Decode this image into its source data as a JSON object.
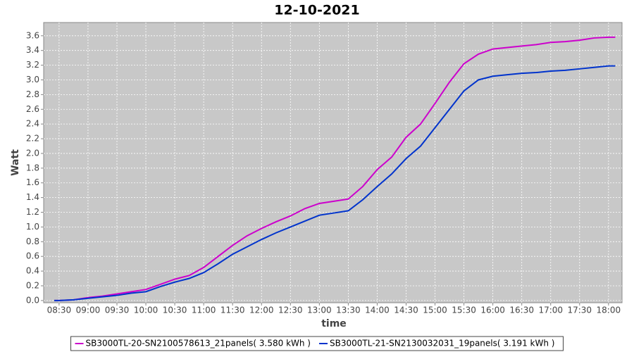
{
  "chart_data": {
    "type": "line",
    "title": "12-10-2021",
    "x_label": "time",
    "y_label": "Watt",
    "x": [
      "08:25",
      "08:30",
      "08:45",
      "09:00",
      "09:15",
      "09:30",
      "09:45",
      "10:00",
      "10:15",
      "10:30",
      "10:45",
      "11:00",
      "11:15",
      "11:30",
      "11:45",
      "12:00",
      "12:15",
      "12:30",
      "12:45",
      "13:00",
      "13:15",
      "13:30",
      "13:45",
      "14:00",
      "14:15",
      "14:30",
      "14:45",
      "15:00",
      "15:15",
      "15:30",
      "15:45",
      "16:00",
      "16:15",
      "16:30",
      "16:45",
      "17:00",
      "17:15",
      "17:30",
      "17:45",
      "18:00",
      "18:07"
    ],
    "series": [
      {
        "name": "SB3000TL-20-SN2100578613_21panels( 3.580 kWh )",
        "color": "#cc00cc",
        "values": [
          0.0,
          0.0,
          0.01,
          0.04,
          0.06,
          0.09,
          0.12,
          0.15,
          0.22,
          0.29,
          0.34,
          0.45,
          0.6,
          0.75,
          0.88,
          0.98,
          1.07,
          1.15,
          1.25,
          1.32,
          1.35,
          1.38,
          1.55,
          1.78,
          1.95,
          2.22,
          2.4,
          2.68,
          2.97,
          3.22,
          3.35,
          3.42,
          3.44,
          3.46,
          3.48,
          3.51,
          3.52,
          3.54,
          3.57,
          3.58,
          3.58
        ]
      },
      {
        "name": "SB3000TL-21-SN2130032031_19panels( 3.191 kWh )",
        "color": "#0033cc",
        "values": [
          0.0,
          0.0,
          0.01,
          0.03,
          0.05,
          0.07,
          0.1,
          0.12,
          0.19,
          0.25,
          0.3,
          0.38,
          0.5,
          0.63,
          0.73,
          0.83,
          0.92,
          1.0,
          1.08,
          1.16,
          1.19,
          1.22,
          1.37,
          1.55,
          1.72,
          1.93,
          2.1,
          2.35,
          2.6,
          2.85,
          3.0,
          3.05,
          3.07,
          3.09,
          3.1,
          3.12,
          3.13,
          3.15,
          3.17,
          3.19,
          3.19
        ]
      }
    ],
    "xlim": [
      "08:14",
      "18:14"
    ],
    "xticks": [
      "08:30",
      "09:00",
      "09:30",
      "10:00",
      "10:30",
      "11:00",
      "11:30",
      "12:00",
      "12:30",
      "13:00",
      "13:30",
      "14:00",
      "14:30",
      "15:00",
      "15:30",
      "16:00",
      "16:30",
      "17:00",
      "17:30",
      "18:00"
    ],
    "ylim": [
      -0.03,
      3.78
    ],
    "yticks": [
      {
        "value": 0,
        "label": "0.0"
      },
      0.2,
      0.4,
      0.6,
      0.8,
      {
        "value": 1,
        "label": "1.0"
      },
      1.2,
      1.4,
      1.6,
      1.8,
      {
        "value": 2,
        "label": "2.0"
      },
      2.2,
      2.4,
      2.6,
      2.8,
      {
        "value": 3,
        "label": "3.0"
      },
      3.2,
      3.4,
      3.6
    ],
    "grid": true,
    "legend": "bottom"
  }
}
